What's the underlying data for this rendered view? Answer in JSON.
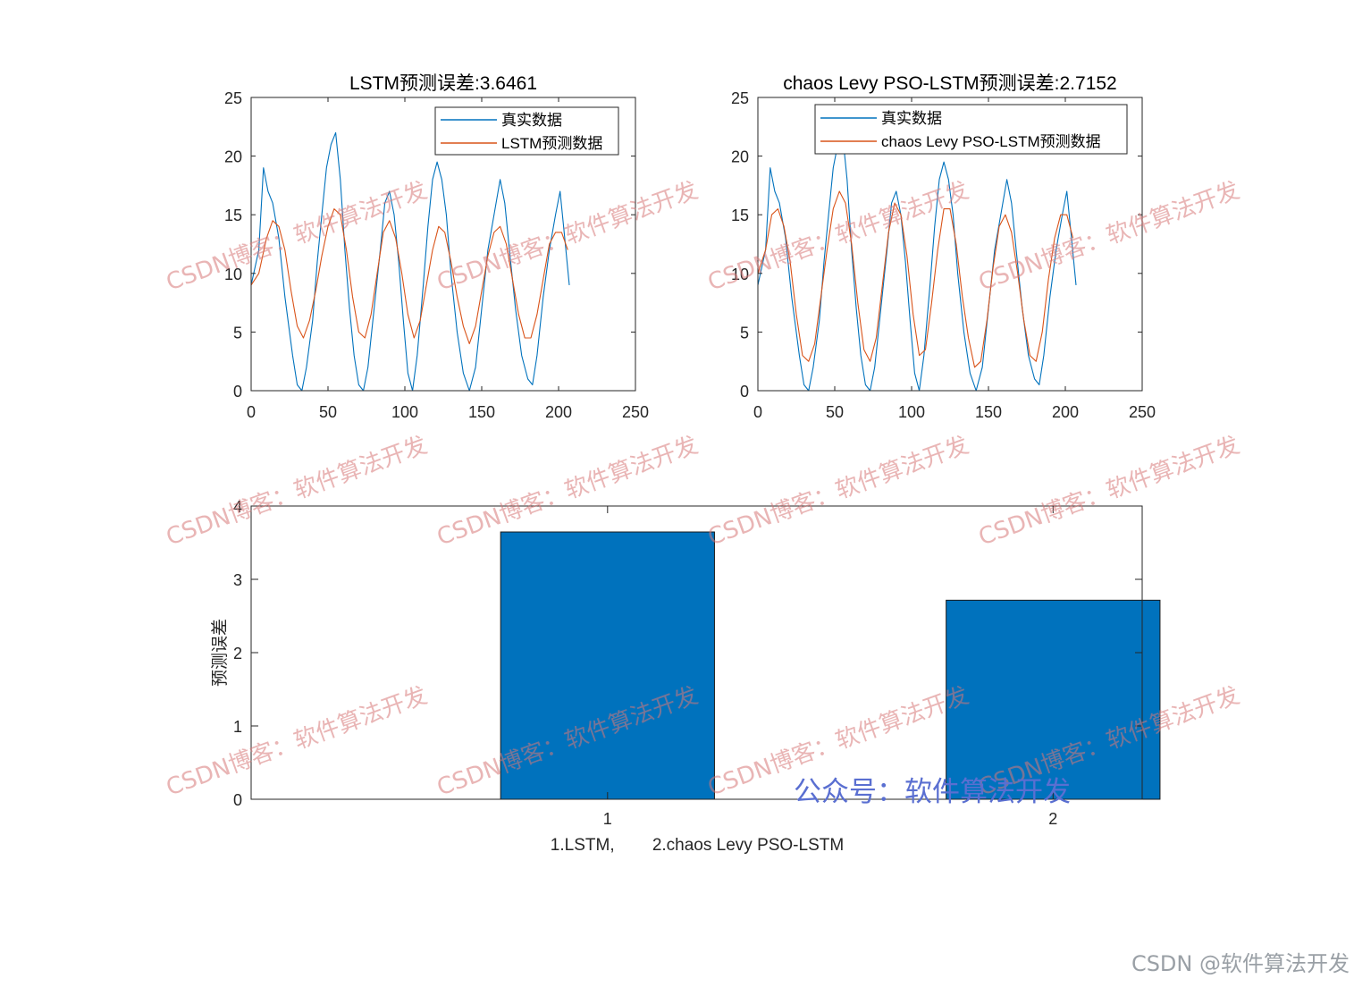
{
  "colors": {
    "real": "#0072BD",
    "pred": "#D95319",
    "bar_fill": "#0072BD",
    "axis": "#262626",
    "watermark": "#d77878",
    "public_watermark": "#5a6fd1"
  },
  "watermarks": {
    "csdn_blog": "CSDN博客：软件算法开发",
    "public_account": "公众号：软件算法开发",
    "footer": "CSDN @软件算法开发"
  },
  "chart_data": [
    {
      "type": "line",
      "title": "LSTM预测误差:3.6461",
      "xlim": [
        0,
        250
      ],
      "ylim": [
        0,
        25
      ],
      "xticks": [
        0,
        50,
        100,
        150,
        200,
        250
      ],
      "yticks": [
        0,
        5,
        10,
        15,
        20,
        25
      ],
      "legend_position": "top-right",
      "series": [
        {
          "name": "真实数据",
          "color": "#0072BD",
          "approx_points": [
            [
              0,
              9
            ],
            [
              5,
              12
            ],
            [
              8,
              19
            ],
            [
              11,
              17
            ],
            [
              14,
              16
            ],
            [
              18,
              13
            ],
            [
              22,
              8
            ],
            [
              27,
              3
            ],
            [
              30,
              0.5
            ],
            [
              33,
              0
            ],
            [
              36,
              2
            ],
            [
              40,
              6
            ],
            [
              43,
              11
            ],
            [
              46,
              15
            ],
            [
              49,
              19
            ],
            [
              52,
              21
            ],
            [
              55,
              22
            ],
            [
              58,
              18
            ],
            [
              61,
              12
            ],
            [
              64,
              7
            ],
            [
              67,
              3
            ],
            [
              70,
              0.5
            ],
            [
              73,
              0
            ],
            [
              76,
              2
            ],
            [
              80,
              7
            ],
            [
              84,
              12
            ],
            [
              87,
              16
            ],
            [
              90,
              17
            ],
            [
              93,
              15
            ],
            [
              96,
              11
            ],
            [
              99,
              6
            ],
            [
              102,
              1.5
            ],
            [
              105,
              0
            ],
            [
              108,
              3
            ],
            [
              112,
              9
            ],
            [
              115,
              14
            ],
            [
              118,
              18
            ],
            [
              121,
              19.5
            ],
            [
              124,
              18
            ],
            [
              127,
              15
            ],
            [
              130,
              10
            ],
            [
              134,
              5
            ],
            [
              138,
              1.5
            ],
            [
              142,
              0
            ],
            [
              146,
              2
            ],
            [
              150,
              7
            ],
            [
              154,
              12
            ],
            [
              158,
              15
            ],
            [
              162,
              18
            ],
            [
              165,
              16
            ],
            [
              168,
              12
            ],
            [
              172,
              7
            ],
            [
              176,
              3
            ],
            [
              180,
              1
            ],
            [
              183,
              0.5
            ],
            [
              186,
              3
            ],
            [
              190,
              8
            ],
            [
              194,
              12
            ],
            [
              198,
              15
            ],
            [
              201,
              17
            ],
            [
              204,
              13
            ],
            [
              207,
              9
            ]
          ]
        },
        {
          "name": "LSTM预测数据",
          "color": "#D95319",
          "approx_points": [
            [
              0,
              9
            ],
            [
              5,
              10
            ],
            [
              10,
              13
            ],
            [
              14,
              14.5
            ],
            [
              18,
              14
            ],
            [
              22,
              12
            ],
            [
              26,
              8.5
            ],
            [
              30,
              5.5
            ],
            [
              34,
              4.5
            ],
            [
              38,
              6
            ],
            [
              42,
              8.5
            ],
            [
              46,
              11.5
            ],
            [
              50,
              14
            ],
            [
              54,
              15.5
            ],
            [
              58,
              15
            ],
            [
              62,
              12
            ],
            [
              66,
              8
            ],
            [
              70,
              5
            ],
            [
              74,
              4.5
            ],
            [
              78,
              6.5
            ],
            [
              82,
              10
            ],
            [
              86,
              13.5
            ],
            [
              90,
              14.5
            ],
            [
              94,
              13
            ],
            [
              98,
              10
            ],
            [
              102,
              6.5
            ],
            [
              106,
              4.5
            ],
            [
              110,
              6
            ],
            [
              114,
              9
            ],
            [
              118,
              12
            ],
            [
              122,
              14
            ],
            [
              126,
              13.5
            ],
            [
              130,
              11
            ],
            [
              134,
              8
            ],
            [
              138,
              5.5
            ],
            [
              142,
              4
            ],
            [
              146,
              5.5
            ],
            [
              150,
              8.5
            ],
            [
              154,
              11.5
            ],
            [
              158,
              13.5
            ],
            [
              162,
              14
            ],
            [
              166,
              12.5
            ],
            [
              170,
              9.5
            ],
            [
              174,
              6.5
            ],
            [
              178,
              4.5
            ],
            [
              182,
              4.5
            ],
            [
              186,
              6.5
            ],
            [
              190,
              9.5
            ],
            [
              194,
              12.5
            ],
            [
              198,
              13.5
            ],
            [
              202,
              13.5
            ],
            [
              206,
              12
            ]
          ]
        }
      ]
    },
    {
      "type": "line",
      "title": "chaos Levy PSO-LSTM预测误差:2.7152",
      "xlim": [
        0,
        250
      ],
      "ylim": [
        0,
        25
      ],
      "xticks": [
        0,
        50,
        100,
        150,
        200,
        250
      ],
      "yticks": [
        0,
        5,
        10,
        15,
        20,
        25
      ],
      "legend_position": "top-right",
      "series": [
        {
          "name": "真实数据",
          "color": "#0072BD",
          "approx_points": [
            [
              0,
              9
            ],
            [
              5,
              12
            ],
            [
              8,
              19
            ],
            [
              11,
              17
            ],
            [
              14,
              16
            ],
            [
              18,
              13
            ],
            [
              22,
              8
            ],
            [
              27,
              3
            ],
            [
              30,
              0.5
            ],
            [
              33,
              0
            ],
            [
              36,
              2
            ],
            [
              40,
              6
            ],
            [
              43,
              11
            ],
            [
              46,
              15
            ],
            [
              49,
              19
            ],
            [
              52,
              21
            ],
            [
              55,
              22
            ],
            [
              58,
              18
            ],
            [
              61,
              12
            ],
            [
              64,
              7
            ],
            [
              67,
              3
            ],
            [
              70,
              0.5
            ],
            [
              73,
              0
            ],
            [
              76,
              2
            ],
            [
              80,
              7
            ],
            [
              84,
              12
            ],
            [
              87,
              16
            ],
            [
              90,
              17
            ],
            [
              93,
              15
            ],
            [
              96,
              11
            ],
            [
              99,
              6
            ],
            [
              102,
              1.5
            ],
            [
              105,
              0
            ],
            [
              108,
              3
            ],
            [
              112,
              9
            ],
            [
              115,
              14
            ],
            [
              118,
              18
            ],
            [
              121,
              19.5
            ],
            [
              124,
              18
            ],
            [
              127,
              15
            ],
            [
              130,
              10
            ],
            [
              134,
              5
            ],
            [
              138,
              1.5
            ],
            [
              142,
              0
            ],
            [
              146,
              2
            ],
            [
              150,
              7
            ],
            [
              154,
              12
            ],
            [
              158,
              15
            ],
            [
              162,
              18
            ],
            [
              165,
              16
            ],
            [
              168,
              12
            ],
            [
              172,
              7
            ],
            [
              176,
              3
            ],
            [
              180,
              1
            ],
            [
              183,
              0.5
            ],
            [
              186,
              3
            ],
            [
              190,
              8
            ],
            [
              194,
              12
            ],
            [
              198,
              15
            ],
            [
              201,
              17
            ],
            [
              204,
              13
            ],
            [
              207,
              9
            ]
          ]
        },
        {
          "name": "chaos Levy PSO-LSTM预测数据",
          "color": "#D95319",
          "approx_points": [
            [
              0,
              10
            ],
            [
              5,
              12
            ],
            [
              9,
              15
            ],
            [
              13,
              15.5
            ],
            [
              17,
              14
            ],
            [
              21,
              11
            ],
            [
              25,
              6.5
            ],
            [
              29,
              3
            ],
            [
              33,
              2.5
            ],
            [
              37,
              4
            ],
            [
              41,
              8
            ],
            [
              45,
              12
            ],
            [
              49,
              15.5
            ],
            [
              53,
              17
            ],
            [
              57,
              16
            ],
            [
              61,
              12.5
            ],
            [
              65,
              7.5
            ],
            [
              69,
              3.5
            ],
            [
              73,
              2.5
            ],
            [
              77,
              4.5
            ],
            [
              81,
              9
            ],
            [
              85,
              13.5
            ],
            [
              89,
              16
            ],
            [
              93,
              15
            ],
            [
              97,
              11.5
            ],
            [
              101,
              6.5
            ],
            [
              105,
              3
            ],
            [
              109,
              3.5
            ],
            [
              113,
              7.5
            ],
            [
              117,
              12
            ],
            [
              121,
              15.5
            ],
            [
              125,
              15.5
            ],
            [
              129,
              12.5
            ],
            [
              133,
              8
            ],
            [
              137,
              4.5
            ],
            [
              141,
              2
            ],
            [
              145,
              2.5
            ],
            [
              149,
              6
            ],
            [
              153,
              10.5
            ],
            [
              157,
              14
            ],
            [
              161,
              15
            ],
            [
              165,
              13.5
            ],
            [
              169,
              10
            ],
            [
              173,
              6
            ],
            [
              177,
              3
            ],
            [
              181,
              2.5
            ],
            [
              185,
              5
            ],
            [
              189,
              9.5
            ],
            [
              193,
              13
            ],
            [
              197,
              15
            ],
            [
              201,
              15
            ],
            [
              205,
              13
            ]
          ]
        }
      ]
    },
    {
      "type": "bar",
      "categories": [
        "1",
        "2"
      ],
      "values": [
        3.6461,
        2.7152
      ],
      "xlabel": "1.LSTM,        2.chaos Levy PSO-LSTM",
      "ylabel": "预测误差",
      "ylim": [
        0,
        4
      ],
      "yticks": [
        0,
        1,
        2,
        3,
        4
      ],
      "xlim": [
        0.2,
        2.2
      ],
      "bar_width": 0.8
    }
  ]
}
